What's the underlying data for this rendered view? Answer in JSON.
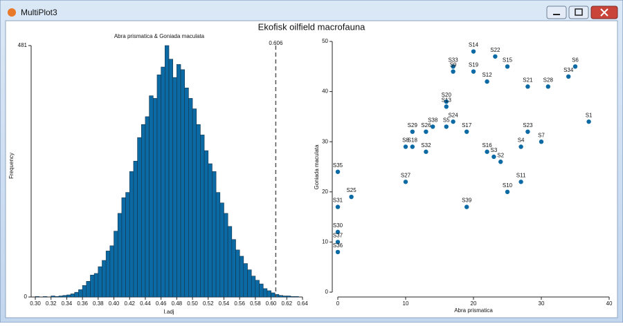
{
  "window": {
    "title": "MultiPlot3"
  },
  "title": "Ekofisk oilfield macrofauna",
  "chart_data": [
    {
      "type": "histogram",
      "title": "Abra prismatica & Goniada maculata",
      "xlabel": "I.adj",
      "ylabel": "Frequency",
      "color": "#0b6aa4",
      "edge_color": "#173247",
      "bins": [
        0.3,
        0.305,
        0.31,
        0.315,
        0.32,
        0.325,
        0.33,
        0.335,
        0.34,
        0.345,
        0.35,
        0.355,
        0.36,
        0.365,
        0.37,
        0.375,
        0.38,
        0.385,
        0.39,
        0.395,
        0.4,
        0.405,
        0.41,
        0.415,
        0.42,
        0.425,
        0.43,
        0.435,
        0.44,
        0.445,
        0.45,
        0.455,
        0.46,
        0.465,
        0.47,
        0.475,
        0.48,
        0.485,
        0.49,
        0.495,
        0.5,
        0.505,
        0.51,
        0.515,
        0.52,
        0.525,
        0.53,
        0.535,
        0.54,
        0.545,
        0.55,
        0.555,
        0.56,
        0.565,
        0.57,
        0.575,
        0.58,
        0.585,
        0.59,
        0.595,
        0.6,
        0.605,
        0.61,
        0.615,
        0.62,
        0.625,
        0.63,
        0.635
      ],
      "values": [
        1,
        0,
        1,
        0,
        2,
        1,
        2,
        3,
        4,
        6,
        9,
        14,
        22,
        30,
        42,
        45,
        58,
        70,
        88,
        98,
        126,
        160,
        190,
        200,
        240,
        260,
        305,
        330,
        345,
        385,
        380,
        425,
        440,
        481,
        455,
        420,
        445,
        435,
        400,
        380,
        360,
        330,
        310,
        280,
        255,
        240,
        200,
        180,
        160,
        135,
        110,
        90,
        78,
        64,
        52,
        40,
        32,
        25,
        16,
        12,
        8,
        5,
        3,
        2,
        2,
        1,
        1
      ],
      "xlim": [
        0.3,
        0.64
      ],
      "xticks": [
        {
          "value": 0.3,
          "label": "0.30"
        },
        0.32,
        0.34,
        0.36,
        0.38,
        {
          "value": 0.4,
          "label": "0.40"
        },
        0.42,
        0.44,
        0.46,
        0.48,
        {
          "value": 0.5,
          "label": "0.50"
        },
        0.52,
        0.54,
        0.56,
        0.58,
        {
          "value": 0.6,
          "label": "0.60"
        },
        0.62,
        0.64
      ],
      "ylim": [
        0,
        481
      ],
      "yticks": [
        0,
        481
      ],
      "vline": 0.606
    },
    {
      "type": "scatter",
      "xlabel": "Abra prismatica",
      "ylabel": "Goniada maculata",
      "color": "#0b6aa4",
      "labels": [
        "S14",
        "S22",
        "S6",
        "S34",
        "S33",
        "S9",
        "S19",
        "S15",
        "S12",
        "S21",
        "S28",
        "S20",
        "S13",
        "S24",
        "S5",
        "S17",
        "S1",
        "S23",
        "S7",
        "S4",
        "S29",
        "S38",
        "S26",
        "S8",
        "S18",
        "S32",
        "S16",
        "S3",
        "S2",
        "S35",
        "S27",
        "S11",
        "S25",
        "S10",
        "S31",
        "S39",
        "S30",
        "S37",
        "S36"
      ],
      "x": [
        20,
        23.2,
        35,
        34,
        17,
        17,
        20,
        25,
        22,
        28,
        31,
        16,
        16,
        17,
        16,
        19,
        37,
        28,
        30,
        27,
        11,
        14,
        13,
        10,
        11,
        13,
        22,
        23,
        24,
        0,
        10,
        27,
        2,
        25,
        0,
        19,
        0,
        0,
        0
      ],
      "y": [
        48,
        47,
        45,
        43,
        45,
        44,
        44,
        45,
        42,
        41,
        41,
        38,
        37,
        34,
        33,
        32,
        34,
        32,
        30,
        29,
        32,
        33,
        32,
        29,
        29,
        28,
        28,
        27,
        26,
        24,
        22,
        22,
        19,
        20,
        17,
        17,
        12,
        10,
        8
      ],
      "xlim": [
        0,
        40
      ],
      "xticks": [
        0,
        10,
        20,
        30,
        40
      ],
      "ylim": [
        0,
        50
      ],
      "yticks": [
        0,
        10,
        20,
        30,
        40,
        50
      ]
    }
  ]
}
